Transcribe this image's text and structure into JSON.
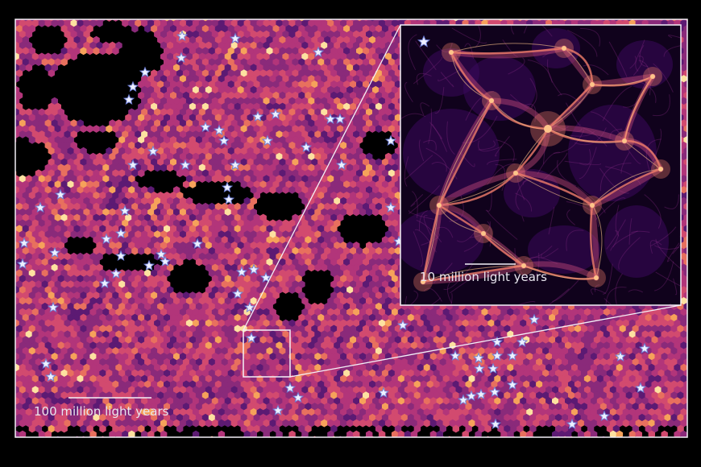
{
  "figure": {
    "background_color": "#000000",
    "frame_color": "#f4f1f8",
    "star_color": "#eef1ff",
    "star_outline_color": "#6f7fd6",
    "main_map": {
      "palette": [
        "#2b0a3d",
        "#5c1a73",
        "#8a2a7a",
        "#b2357a",
        "#d24a6f",
        "#e8705e",
        "#f6a25a",
        "#fde1a0"
      ],
      "scale_bar_label": "100 million light years"
    },
    "inset": {
      "palette": [
        "#10021c",
        "#24063d",
        "#3b0a5c",
        "#5e1478",
        "#8a2a86",
        "#c44a7a",
        "#f07d6a",
        "#fdc58a"
      ],
      "scale_bar_label": "10 million light years"
    }
  }
}
